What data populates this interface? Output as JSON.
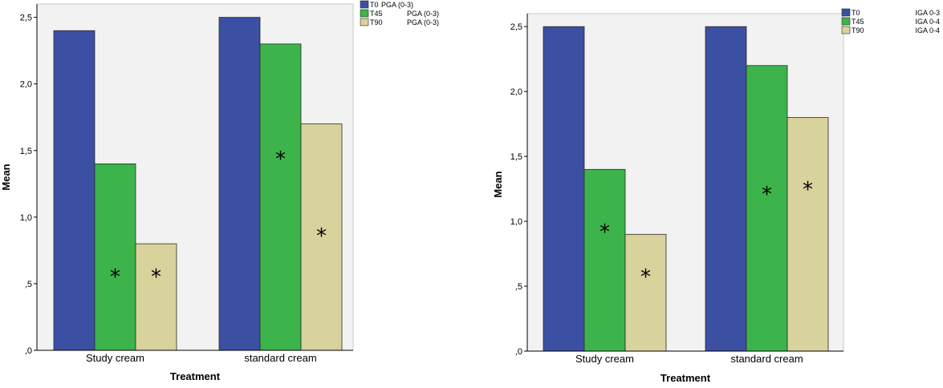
{
  "chart_data": [
    {
      "type": "bar",
      "categories": [
        "Study cream",
        "standard cream"
      ],
      "series": [
        {
          "name": "T0",
          "legend_suffix": "PGA (0-3)",
          "values": [
            2.4,
            2.5
          ],
          "color": "#3b4fa3"
        },
        {
          "name": "T45",
          "legend_suffix": "PGA (0-3)",
          "values": [
            1.4,
            2.3
          ],
          "color": "#3cb44b"
        },
        {
          "name": "T90",
          "legend_suffix": "PGA (0-3)",
          "values": [
            0.8,
            1.7
          ],
          "color": "#d8d29c"
        }
      ],
      "significance": [
        [
          false,
          true,
          true
        ],
        [
          false,
          true,
          true
        ]
      ],
      "significance_marker": "*",
      "xlabel": "Treatment",
      "ylabel": "Mean",
      "ylim": [
        0,
        2.6
      ],
      "yticks": [
        0,
        0.5,
        1.0,
        1.5,
        2.0,
        2.5
      ],
      "ytick_labels": [
        ",0",
        ",5",
        "1,0",
        "1,5",
        "2,0",
        "2,5"
      ],
      "legend_position": "top-right",
      "plot_background": "#f2f2f2"
    },
    {
      "type": "bar",
      "categories": [
        "Study cream",
        "standard cream"
      ],
      "series": [
        {
          "name": "T0",
          "legend_suffix": "IGA 0-3",
          "values": [
            2.5,
            2.5
          ],
          "color": "#3b4fa3"
        },
        {
          "name": "T45",
          "legend_suffix": "IGA 0-4",
          "values": [
            1.4,
            2.2
          ],
          "color": "#3cb44b"
        },
        {
          "name": "T90",
          "legend_suffix": "IGA 0-4",
          "values": [
            0.9,
            1.8
          ],
          "color": "#d8d29c"
        }
      ],
      "significance": [
        [
          false,
          true,
          true
        ],
        [
          false,
          true,
          true
        ]
      ],
      "significance_marker": "*",
      "xlabel": "Treatment",
      "ylabel": "Mean",
      "ylim": [
        0,
        2.6
      ],
      "yticks": [
        0,
        0.5,
        1.0,
        1.5,
        2.0,
        2.5
      ],
      "ytick_labels": [
        ",0",
        ",5",
        "1,0",
        "1,5",
        "2,0",
        "2,5"
      ],
      "legend_position": "top-right",
      "plot_background": "#f2f2f2"
    }
  ]
}
